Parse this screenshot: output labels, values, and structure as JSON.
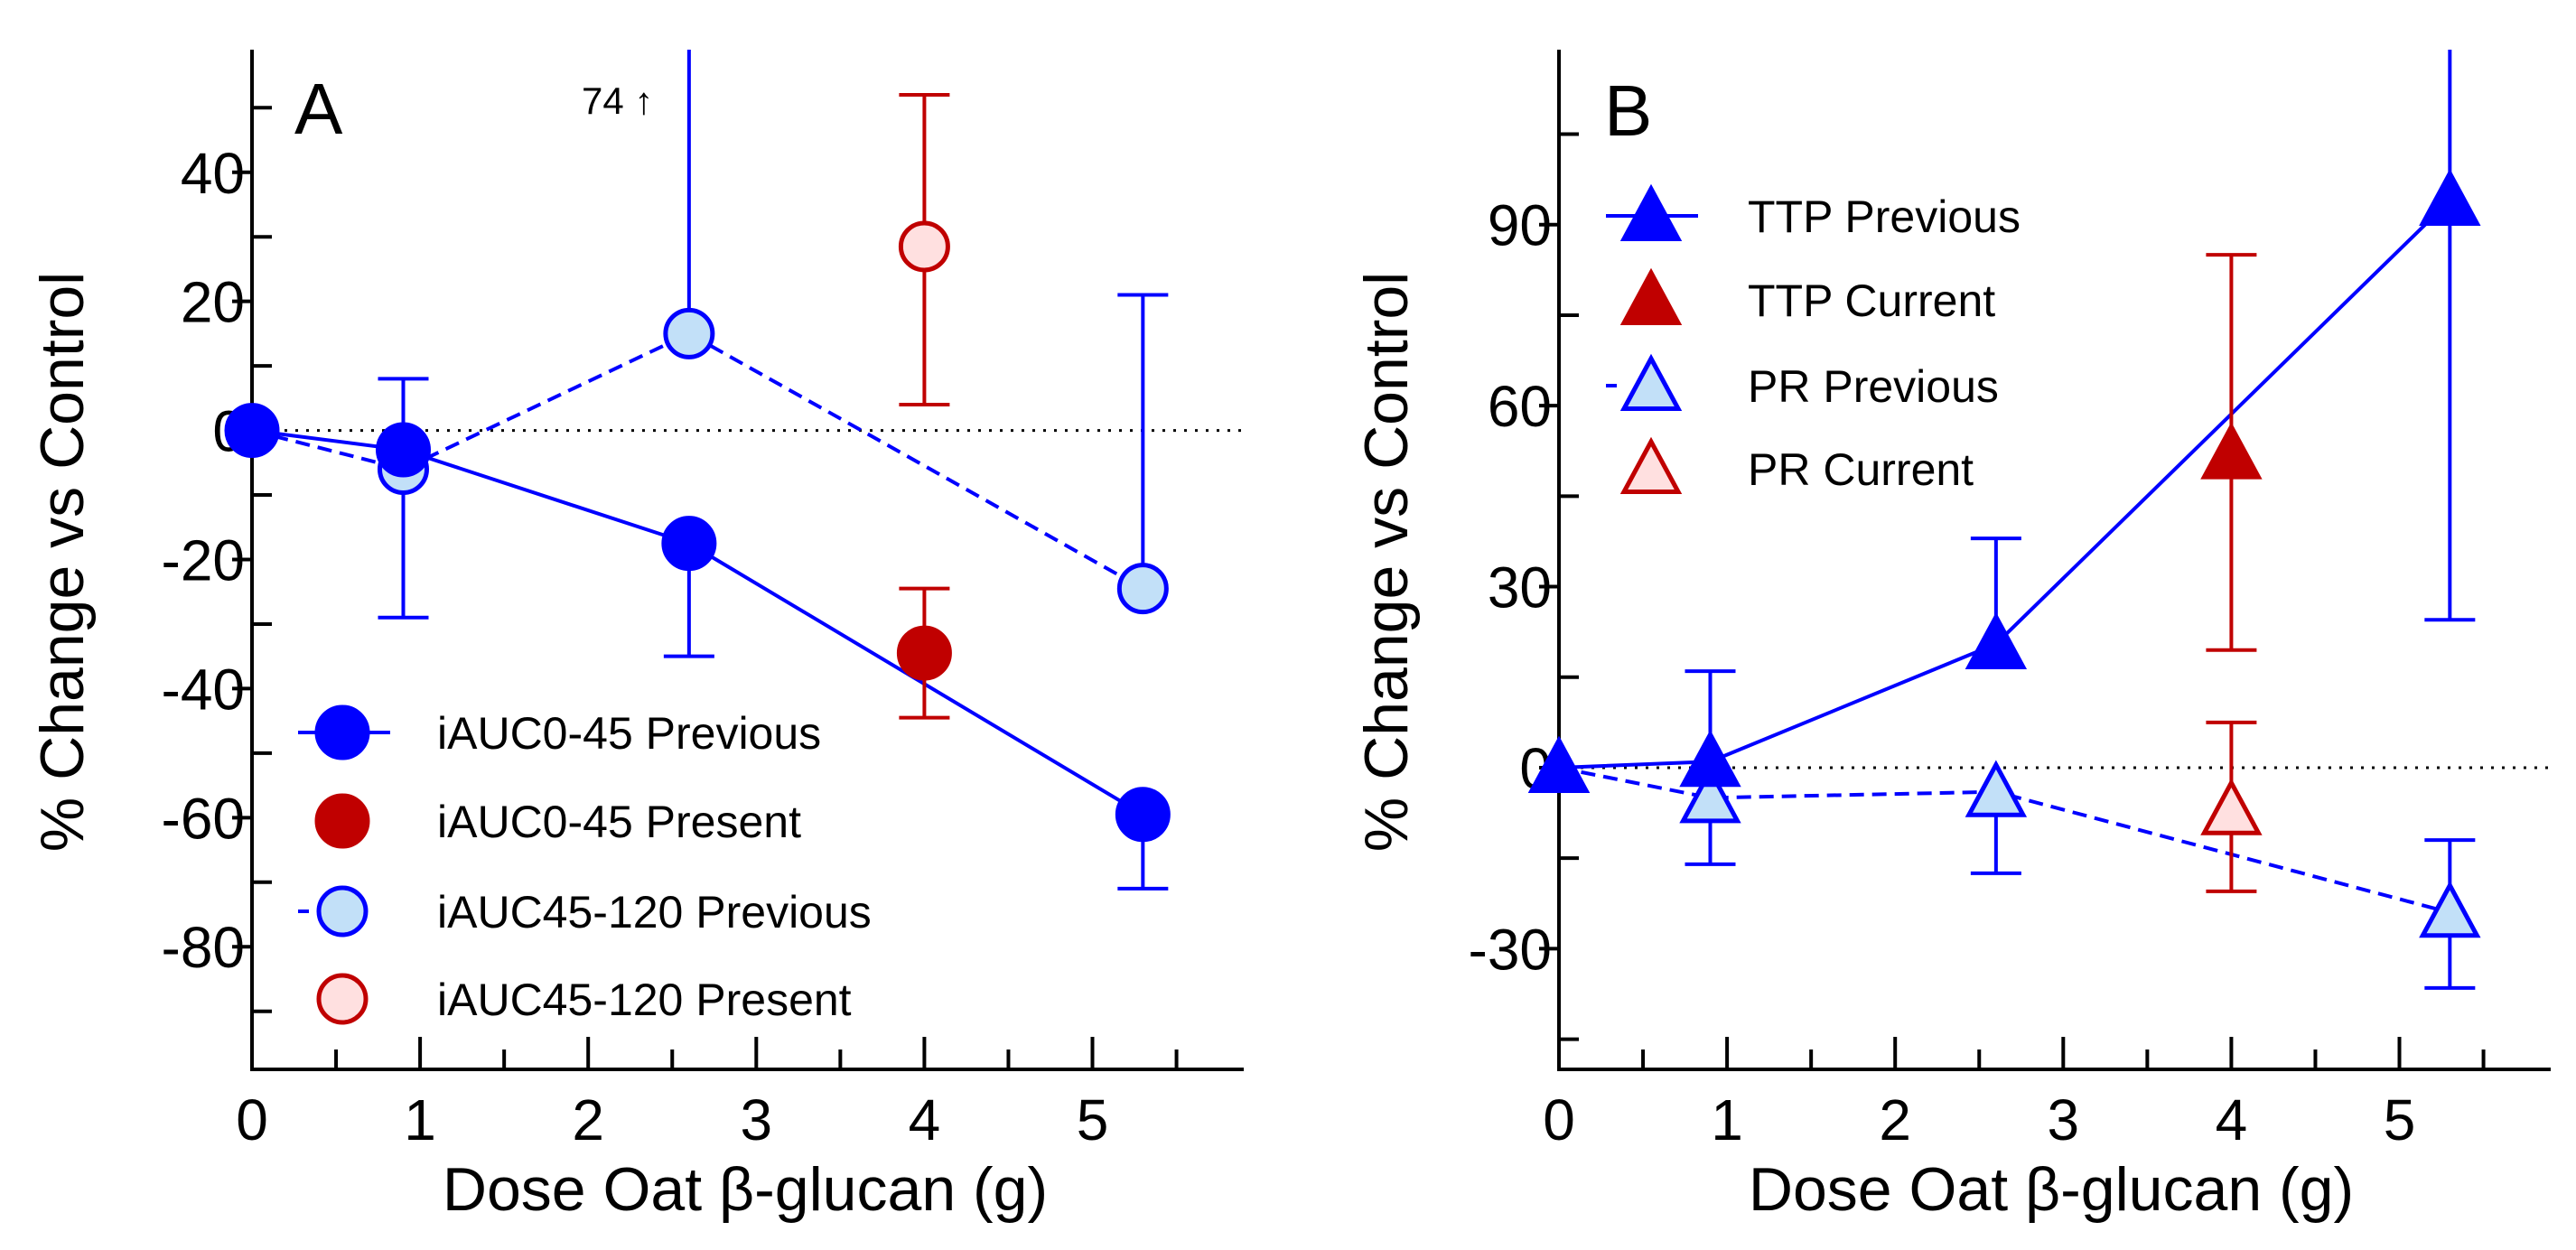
{
  "colors": {
    "blue": "#0000ff",
    "red": "#c00000",
    "light_blue": "#c2e0f8",
    "light_red": "#ffe0e0",
    "axis": "#000000"
  },
  "chart_data": [
    {
      "type": "scatter",
      "panel_label": "A",
      "xlabel": "Dose Oat β-glucan (g)",
      "ylabel": "% Change vs Control",
      "xlim": [
        0,
        5.9
      ],
      "ylim": [
        -99,
        59
      ],
      "xticks": [
        "0",
        "1",
        "2",
        "3",
        "4",
        "5"
      ],
      "xtick_values": [
        0,
        1,
        2,
        3,
        4,
        5
      ],
      "yticks": [
        "-80",
        "-60",
        "-40",
        "-20",
        "0",
        "20",
        "40"
      ],
      "ytick_values": [
        -80,
        -60,
        -40,
        -20,
        0,
        20,
        40
      ],
      "yminor_step": 10,
      "xminor_step": 0.5,
      "reference_line": 0,
      "annotation": "74 ↑",
      "legend_position": "bottom-left",
      "series": [
        {
          "name": "iAUC0-45 Previous",
          "marker": "circle",
          "fill": "blue",
          "stroke": "blue",
          "line": "solid",
          "x": [
            0,
            0.9,
            2.6,
            5.3
          ],
          "y": [
            0,
            -3,
            -17.5,
            -59.5
          ],
          "err_low": [
            null,
            null,
            -35,
            -71
          ],
          "err_high": [
            null,
            8,
            null,
            null
          ]
        },
        {
          "name": "iAUC0-45 Present",
          "marker": "circle",
          "fill": "red",
          "stroke": "red",
          "line": "none",
          "x": [
            4
          ],
          "y": [
            -34.5
          ],
          "err_low": [
            -44.5
          ],
          "err_high": [
            -24.5
          ]
        },
        {
          "name": "iAUC45-120 Previous",
          "marker": "circle",
          "fill": "light_blue",
          "stroke": "blue",
          "line": "dashed",
          "x": [
            0,
            0.9,
            2.6,
            5.3
          ],
          "y": [
            0,
            -6,
            15,
            -24.5
          ],
          "err_low": [
            null,
            -29,
            null,
            null
          ],
          "err_high": [
            null,
            null,
            74,
            21
          ]
        },
        {
          "name": "iAUC45-120 Present",
          "marker": "circle",
          "fill": "light_red",
          "stroke": "red",
          "line": "none",
          "x": [
            4
          ],
          "y": [
            28.5
          ],
          "err_low": [
            4
          ],
          "err_high": [
            52
          ]
        }
      ]
    },
    {
      "type": "scatter",
      "panel_label": "B",
      "xlabel": "Dose Oat β-glucan (g)",
      "ylabel": "% Change vs Control",
      "xlim": [
        0,
        5.9
      ],
      "ylim": [
        -50,
        119
      ],
      "xticks": [
        "0",
        "1",
        "2",
        "3",
        "4",
        "5"
      ],
      "xtick_values": [
        0,
        1,
        2,
        3,
        4,
        5
      ],
      "yticks": [
        "-30",
        "0",
        "30",
        "60",
        "90"
      ],
      "ytick_values": [
        -30,
        0,
        30,
        60,
        90
      ],
      "yminor_step": 15,
      "xminor_step": 0.5,
      "reference_line": 0,
      "legend_position": "top-left",
      "series": [
        {
          "name": "TTP Previous",
          "marker": "triangle",
          "fill": "blue",
          "stroke": "blue",
          "line": "solid",
          "x": [
            0,
            0.9,
            2.6,
            5.3
          ],
          "y": [
            0,
            1,
            20.5,
            94
          ],
          "err_low": [
            null,
            null,
            null,
            24.5
          ],
          "err_high": [
            null,
            16,
            38,
            119
          ]
        },
        {
          "name": "TTP Current",
          "marker": "triangle",
          "fill": "red",
          "stroke": "red",
          "line": "none",
          "x": [
            4
          ],
          "y": [
            52
          ],
          "err_low": [
            19.5
          ],
          "err_high": [
            85
          ]
        },
        {
          "name": "PR Previous",
          "marker": "triangle",
          "fill": "light_blue",
          "stroke": "blue",
          "line": "dashed",
          "x": [
            0,
            0.9,
            2.6,
            5.3
          ],
          "y": [
            0,
            -5,
            -4,
            -24
          ],
          "err_low": [
            null,
            -16,
            -17.5,
            -36.5
          ],
          "err_high": [
            null,
            null,
            null,
            -12
          ]
        },
        {
          "name": "PR Current",
          "marker": "triangle",
          "fill": "light_red",
          "stroke": "red",
          "line": "none",
          "x": [
            4
          ],
          "y": [
            -7
          ],
          "err_low": [
            -20.5
          ],
          "err_high": [
            7.5
          ]
        }
      ]
    }
  ]
}
